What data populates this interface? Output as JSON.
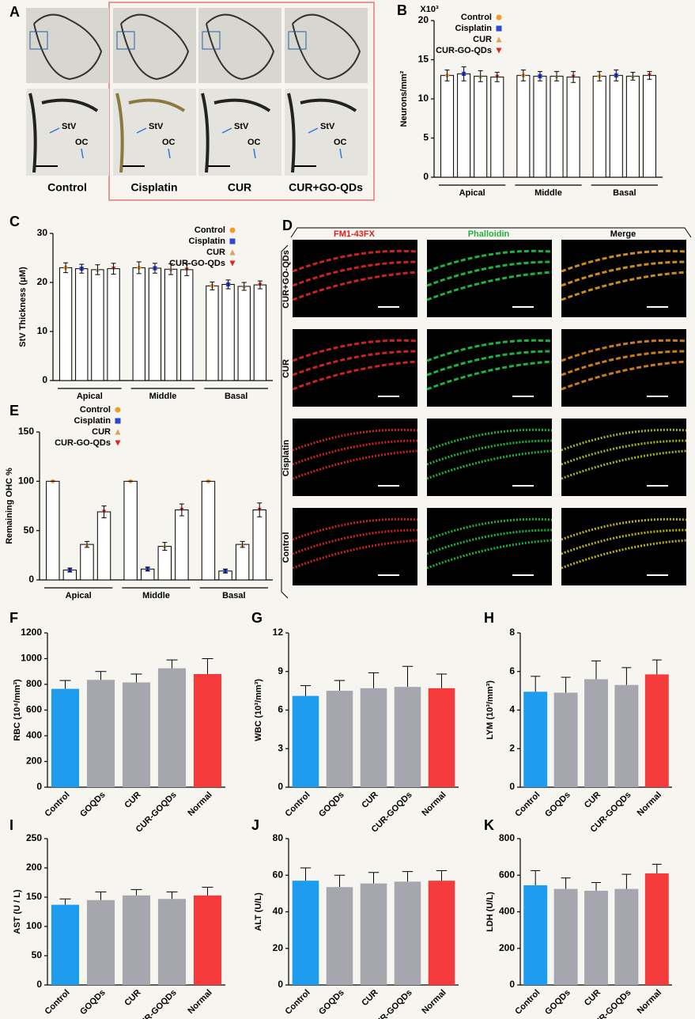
{
  "panel_a": {
    "letter": "A",
    "groups": [
      "Control",
      "Cisplatin",
      "CUR",
      "CUR+GO-QDs"
    ],
    "annotations": [
      "StV",
      "OC"
    ]
  },
  "panel_d": {
    "letter": "D",
    "columns": [
      "FM1-43FX",
      "Phalloidin",
      "Merge"
    ],
    "rows": [
      "CUR+GO-QDs",
      "CUR",
      "Cisplatin",
      "Control"
    ]
  },
  "chart_data": [
    {
      "type": "bar",
      "panel": "B",
      "multiplier": "X10³",
      "ylabel": "Neurons/mm²",
      "categories": [
        "Apical",
        "Middle",
        "Basal"
      ],
      "ylim": [
        0,
        20
      ],
      "yticks": [
        0,
        5,
        10,
        15,
        20
      ],
      "series": [
        {
          "name": "Control",
          "color": "#f39a2b",
          "marker": "circle",
          "values": [
            13.0,
            13.0,
            12.9
          ],
          "errors": [
            0.7,
            0.7,
            0.6
          ]
        },
        {
          "name": "Cisplatin",
          "color": "#2e45d8",
          "marker": "square",
          "values": [
            13.2,
            12.9,
            13.0
          ],
          "errors": [
            0.9,
            0.6,
            0.7
          ]
        },
        {
          "name": "CUR",
          "color": "#d9a35a",
          "marker": "triangle-up",
          "values": [
            12.9,
            12.9,
            12.9
          ],
          "errors": [
            0.7,
            0.6,
            0.5
          ]
        },
        {
          "name": "CUR-GO-QDs",
          "color": "#e3221f",
          "marker": "triangle-down",
          "values": [
            12.8,
            12.8,
            13.0
          ],
          "errors": [
            0.6,
            0.7,
            0.5
          ]
        }
      ]
    },
    {
      "type": "bar",
      "panel": "C",
      "ylabel": "StV Thickness (μM)",
      "categories": [
        "Apical",
        "Middle",
        "Basal"
      ],
      "ylim": [
        0,
        30
      ],
      "yticks": [
        0,
        10,
        20,
        30
      ],
      "series": [
        {
          "name": "Control",
          "color": "#f39a2b",
          "marker": "circle",
          "values": [
            23.0,
            23.0,
            19.3
          ],
          "errors": [
            1.0,
            1.2,
            0.8
          ]
        },
        {
          "name": "Cisplatin",
          "color": "#2e45d8",
          "marker": "square",
          "values": [
            22.8,
            22.9,
            19.6
          ],
          "errors": [
            0.9,
            1.0,
            0.9
          ]
        },
        {
          "name": "CUR",
          "color": "#d9a35a",
          "marker": "triangle-up",
          "values": [
            22.6,
            22.7,
            19.2
          ],
          "errors": [
            1.0,
            1.1,
            0.8
          ]
        },
        {
          "name": "CUR-GO-QDs",
          "color": "#e3221f",
          "marker": "triangle-down",
          "values": [
            22.8,
            22.6,
            19.5
          ],
          "errors": [
            1.1,
            1.2,
            0.8
          ]
        }
      ]
    },
    {
      "type": "bar",
      "panel": "E",
      "ylabel": "Remaining OHC %",
      "categories": [
        "Apical",
        "Middle",
        "Basal"
      ],
      "ylim": [
        0,
        150
      ],
      "yticks": [
        0,
        50,
        100,
        150
      ],
      "series": [
        {
          "name": "Control",
          "color": "#f39a2b",
          "marker": "circle",
          "values": [
            100,
            100,
            100
          ],
          "errors": [
            0,
            0,
            0
          ]
        },
        {
          "name": "Cisplatin",
          "color": "#2e45d8",
          "marker": "square",
          "values": [
            10,
            11,
            9
          ],
          "errors": [
            2,
            2,
            2
          ]
        },
        {
          "name": "CUR",
          "color": "#d9a35a",
          "marker": "triangle-up",
          "values": [
            36,
            34,
            36
          ],
          "errors": [
            3,
            4,
            3
          ]
        },
        {
          "name": "CUR-GO-QDs",
          "color": "#e3221f",
          "marker": "triangle-down",
          "values": [
            69,
            71,
            71
          ],
          "errors": [
            6,
            6,
            7
          ]
        }
      ]
    },
    {
      "type": "bar",
      "panel": "F",
      "ylabel": "RBC (10⁴/mm³)",
      "categories": [
        "Control",
        "GOQDs",
        "CUR",
        "CUR-GOQDs",
        "Normal"
      ],
      "colors": [
        "#1e9cf0",
        "#a6a6ae",
        "#a6a6ae",
        "#a6a6ae",
        "#f43a3a"
      ],
      "ylim": [
        0,
        1200
      ],
      "yticks": [
        0,
        200,
        400,
        600,
        800,
        1000,
        1200
      ],
      "values": [
        765,
        835,
        815,
        925,
        880
      ],
      "errors": [
        65,
        65,
        65,
        65,
        120
      ]
    },
    {
      "type": "bar",
      "panel": "G",
      "ylabel": "WBC (10³/mm³)",
      "categories": [
        "Control",
        "GOQDs",
        "CUR",
        "CUR-GOQDs",
        "Normal"
      ],
      "colors": [
        "#1e9cf0",
        "#a6a6ae",
        "#a6a6ae",
        "#a6a6ae",
        "#f43a3a"
      ],
      "ylim": [
        0,
        12
      ],
      "yticks": [
        0,
        3,
        6,
        9,
        12
      ],
      "values": [
        7.1,
        7.5,
        7.7,
        7.8,
        7.7
      ],
      "errors": [
        0.8,
        0.8,
        1.2,
        1.6,
        1.1
      ]
    },
    {
      "type": "bar",
      "panel": "H",
      "ylabel": "LYM (10³/mm³)",
      "categories": [
        "Control",
        "GOQDs",
        "CUR",
        "CUR-GOQDs",
        "Normal"
      ],
      "colors": [
        "#1e9cf0",
        "#a6a6ae",
        "#a6a6ae",
        "#a6a6ae",
        "#f43a3a"
      ],
      "ylim": [
        0,
        8
      ],
      "yticks": [
        0,
        2,
        4,
        6,
        8
      ],
      "values": [
        4.95,
        4.9,
        5.6,
        5.3,
        5.85
      ],
      "errors": [
        0.8,
        0.8,
        0.95,
        0.9,
        0.75
      ]
    },
    {
      "type": "bar",
      "panel": "I",
      "ylabel": "AST (U / L)",
      "categories": [
        "Control",
        "GOQDs",
        "CUR",
        "CUR-GOQDs",
        "Normal"
      ],
      "colors": [
        "#1e9cf0",
        "#a6a6ae",
        "#a6a6ae",
        "#a6a6ae",
        "#f43a3a"
      ],
      "ylim": [
        0,
        250
      ],
      "yticks": [
        0,
        50,
        100,
        150,
        200,
        250
      ],
      "values": [
        137,
        145,
        153,
        147,
        153
      ],
      "errors": [
        10,
        14,
        10,
        12,
        14
      ]
    },
    {
      "type": "bar",
      "panel": "J",
      "ylabel": "ALT (U/L)",
      "categories": [
        "Control",
        "GOQDs",
        "CUR",
        "CUR-GOQDs",
        "Normal"
      ],
      "colors": [
        "#1e9cf0",
        "#a6a6ae",
        "#a6a6ae",
        "#a6a6ae",
        "#f43a3a"
      ],
      "ylim": [
        0,
        80
      ],
      "yticks": [
        0,
        20,
        40,
        60,
        80
      ],
      "values": [
        57,
        53.5,
        55.5,
        56.5,
        57
      ],
      "errors": [
        7,
        6.5,
        6,
        5.5,
        5.5
      ]
    },
    {
      "type": "bar",
      "panel": "K",
      "ylabel": "LDH (U/L)",
      "categories": [
        "Control",
        "GOQDs",
        "CUR",
        "CUR-GOQDs",
        "Normal"
      ],
      "colors": [
        "#1e9cf0",
        "#a6a6ae",
        "#a6a6ae",
        "#a6a6ae",
        "#f43a3a"
      ],
      "ylim": [
        0,
        800
      ],
      "yticks": [
        0,
        200,
        400,
        600,
        800
      ],
      "values": [
        545,
        525,
        515,
        525,
        610
      ],
      "errors": [
        80,
        60,
        45,
        80,
        50
      ]
    }
  ]
}
